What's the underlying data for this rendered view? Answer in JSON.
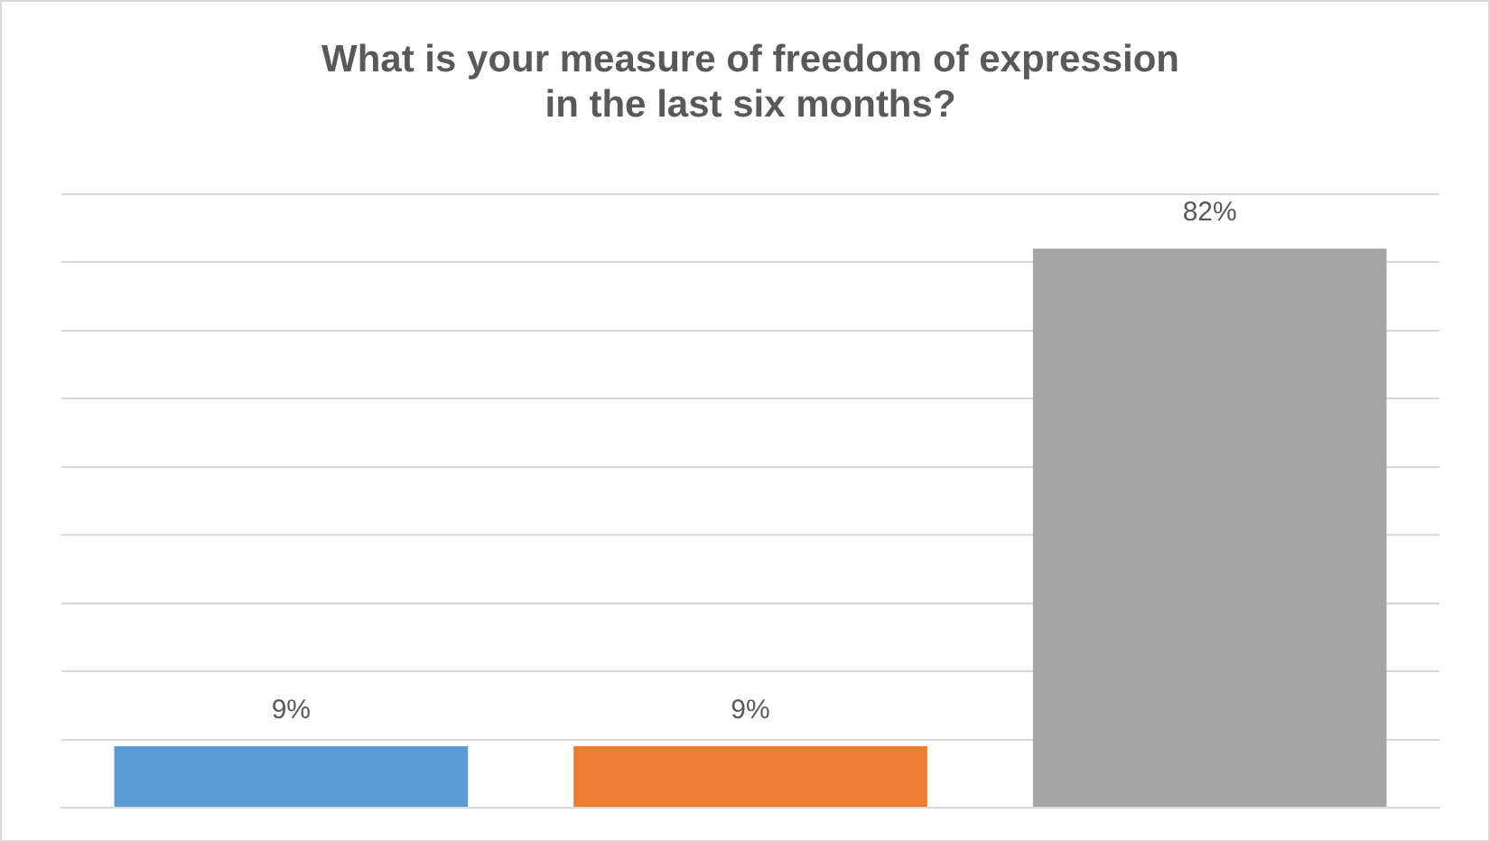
{
  "chart_data": {
    "type": "bar",
    "title": "What is your measure of freedom of expression\nin the last six months?",
    "categories": [
      null,
      null,
      null
    ],
    "values": [
      9,
      9,
      82
    ],
    "colors": [
      "#5b9bd5",
      "#ed7d31",
      "#a5a5a5"
    ],
    "value_labels": [
      "9%",
      "9%",
      "82%"
    ],
    "ylim": [
      0,
      90
    ],
    "yticks": [
      0,
      10,
      20,
      30,
      40,
      50,
      60,
      70,
      80,
      90
    ],
    "grid": "y",
    "tick_labels": false,
    "legend": false
  }
}
